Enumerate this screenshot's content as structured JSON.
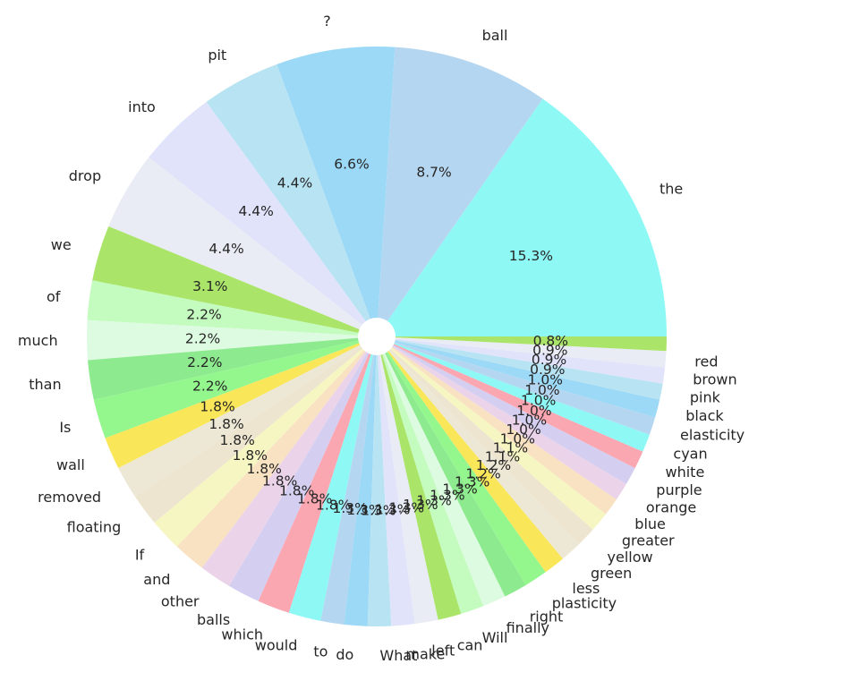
{
  "chart_data": {
    "type": "pie",
    "style": "donut",
    "start_angle_deg": 0,
    "direction": "counterclockwise",
    "autopct_format": "{:.1f}%",
    "slices": [
      {
        "label": "the",
        "value": 15.3,
        "color": "#8ef8f5"
      },
      {
        "label": "ball",
        "value": 8.7,
        "color": "#b5d6f0"
      },
      {
        "label": "?",
        "value": 6.6,
        "color": "#9cd9f7"
      },
      {
        "label": "pit",
        "value": 4.4,
        "color": "#b8e3f2"
      },
      {
        "label": "into",
        "value": 4.4,
        "color": "#e1e3fb"
      },
      {
        "label": "drop",
        "value": 4.4,
        "color": "#e9ecf4"
      },
      {
        "label": "we",
        "value": 3.1,
        "color": "#aae569"
      },
      {
        "label": "of",
        "value": 2.2,
        "color": "#c4fbbe"
      },
      {
        "label": "much",
        "value": 2.2,
        "color": "#ddfbe1"
      },
      {
        "label": "than",
        "value": 2.2,
        "color": "#8eea8e"
      },
      {
        "label": "Is",
        "value": 2.2,
        "color": "#94f78e"
      },
      {
        "label": "wall",
        "value": 1.8,
        "color": "#f9e659"
      },
      {
        "label": "removed",
        "value": 1.8,
        "color": "#ece8d5"
      },
      {
        "label": "floating",
        "value": 1.8,
        "color": "#ede5cf"
      },
      {
        "label": "If",
        "value": 1.8,
        "color": "#f6f6c2"
      },
      {
        "label": "and",
        "value": 1.8,
        "color": "#f9e2c1"
      },
      {
        "label": "other",
        "value": 1.8,
        "color": "#ebd3ea"
      },
      {
        "label": "balls",
        "value": 1.8,
        "color": "#d4cff1"
      },
      {
        "label": "which",
        "value": 1.8,
        "color": "#fba7b2"
      },
      {
        "label": "would",
        "value": 1.8,
        "color": "#8ef8f5"
      },
      {
        "label": "to",
        "value": 1.3,
        "color": "#b5d6f0"
      },
      {
        "label": "do",
        "value": 1.3,
        "color": "#9cd9f7"
      },
      {
        "label": "What",
        "value": 1.3,
        "color": "#b8e3f2"
      },
      {
        "label": "make",
        "value": 1.3,
        "color": "#e1e3fb"
      },
      {
        "label": "left",
        "value": 1.3,
        "color": "#e9ecf4"
      },
      {
        "label": "can",
        "value": 1.3,
        "color": "#aae569"
      },
      {
        "label": "Will",
        "value": 1.3,
        "color": "#c4fbbe"
      },
      {
        "label": "finally",
        "value": 1.3,
        "color": "#ddfbe1"
      },
      {
        "label": "right",
        "value": 1.3,
        "color": "#8eea8e"
      },
      {
        "label": "plasticity",
        "value": 1.3,
        "color": "#94f78e"
      },
      {
        "label": "less",
        "value": 1.2,
        "color": "#f9e659"
      },
      {
        "label": "green",
        "value": 1.2,
        "color": "#ece8d5"
      },
      {
        "label": "yellow",
        "value": 1.1,
        "color": "#ede5cf"
      },
      {
        "label": "greater",
        "value": 1.1,
        "color": "#f6f6c2"
      },
      {
        "label": "blue",
        "value": 1.0,
        "color": "#f9e2c1"
      },
      {
        "label": "orange",
        "value": 1.0,
        "color": "#ebd3ea"
      },
      {
        "label": "purple",
        "value": 1.0,
        "color": "#d4cff1"
      },
      {
        "label": "white",
        "value": 1.0,
        "color": "#fba7b2"
      },
      {
        "label": "cyan",
        "value": 1.0,
        "color": "#8ef8f5"
      },
      {
        "label": "elasticity",
        "value": 1.0,
        "color": "#b5d6f0"
      },
      {
        "label": "black",
        "value": 1.0,
        "color": "#9cd9f7"
      },
      {
        "label": "pink",
        "value": 0.9,
        "color": "#b8e3f2"
      },
      {
        "label": "brown",
        "value": 0.9,
        "color": "#e1e3fb"
      },
      {
        "label": "red",
        "value": 0.9,
        "color": "#e9ecf4"
      },
      {
        "label": "",
        "value": 0.8,
        "color": "#aae569"
      }
    ]
  }
}
